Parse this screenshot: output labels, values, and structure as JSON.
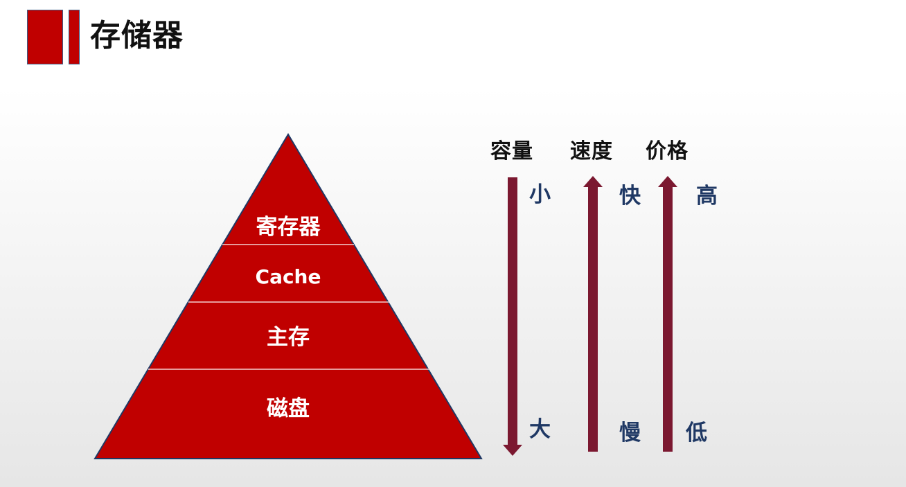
{
  "title": "存储器",
  "pyramid": {
    "levels": [
      "寄存器",
      "Cache",
      "主存",
      "磁盘"
    ]
  },
  "columns": [
    {
      "header": "容量",
      "top": "小",
      "bottom": "大",
      "arrow": "down"
    },
    {
      "header": "速度",
      "top": "快",
      "bottom": "慢",
      "arrow": "up"
    },
    {
      "header": "价格",
      "top": "高",
      "bottom": "低",
      "arrow": "up"
    }
  ],
  "colors": {
    "accent": "#c00000",
    "arrow": "#7b1830",
    "scale_text": "#1f3864",
    "outline": "#1f3864"
  }
}
